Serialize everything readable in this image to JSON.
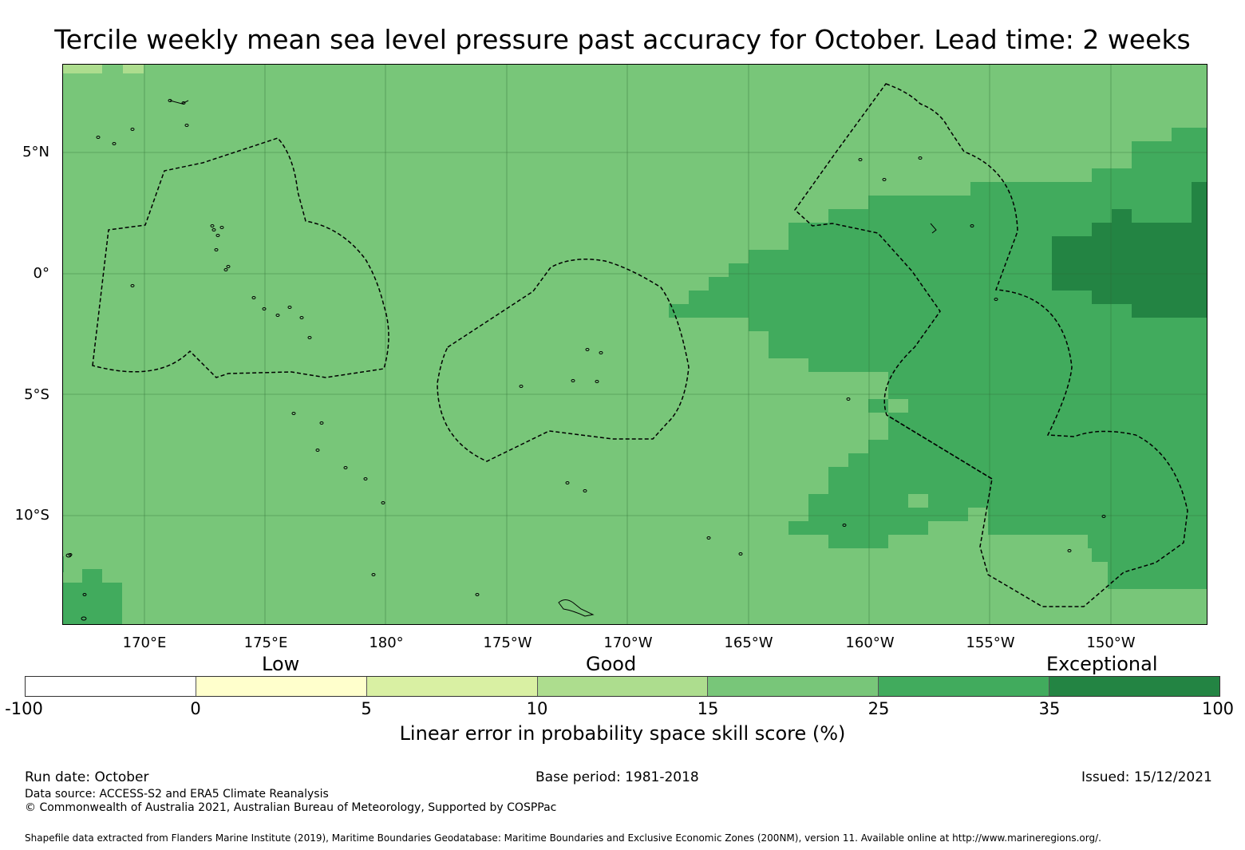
{
  "title": "Tercile weekly mean sea level pressure past accuracy for October. Lead time: 2 weeks",
  "map": {
    "lat_labels": [
      "5°N",
      "0°",
      "5°S",
      "10°S"
    ],
    "lon_labels": [
      "170°E",
      "175°E",
      "180°",
      "175°W",
      "170°W",
      "165°W",
      "160°W",
      "155°W",
      "150°W"
    ],
    "colors": {
      "base": "#78c679",
      "high": "#41ab5d",
      "very_high": "#238443",
      "light": "#addd8e",
      "grid": "#2f6a35",
      "eez": "#000000"
    }
  },
  "legend": {
    "categories": {
      "low": "Low",
      "good": "Good",
      "exceptional": "Exceptional"
    },
    "segments": [
      {
        "color": "#ffffff"
      },
      {
        "color": "#ffffcc"
      },
      {
        "color": "#d9f0a3"
      },
      {
        "color": "#addd8e"
      },
      {
        "color": "#78c679"
      },
      {
        "color": "#41ab5d"
      },
      {
        "color": "#238443"
      }
    ],
    "ticks": [
      "-100",
      "0",
      "5",
      "10",
      "15",
      "25",
      "35",
      "100"
    ],
    "title": "Linear error in probability space skill score (%)"
  },
  "footer": {
    "run_date": "Run date: October",
    "base_period": "Base period: 1981-2018",
    "issued": "Issued: 15/12/2021",
    "data_source": "Data source: ACCESS-S2 and ERA5 Climate Reanalysis",
    "copyright": "© Commonwealth of Australia 2021, Australian Bureau of Meteorology, Supported by COSPPac",
    "shapefile": "Shapefile data extracted from Flanders Marine Institute (2019), Maritime Boundaries Geodatabase: Maritime Boundaries and Exclusive Economic Zones (200NM), version 11. Available online at http://www.marineregions.org/."
  }
}
